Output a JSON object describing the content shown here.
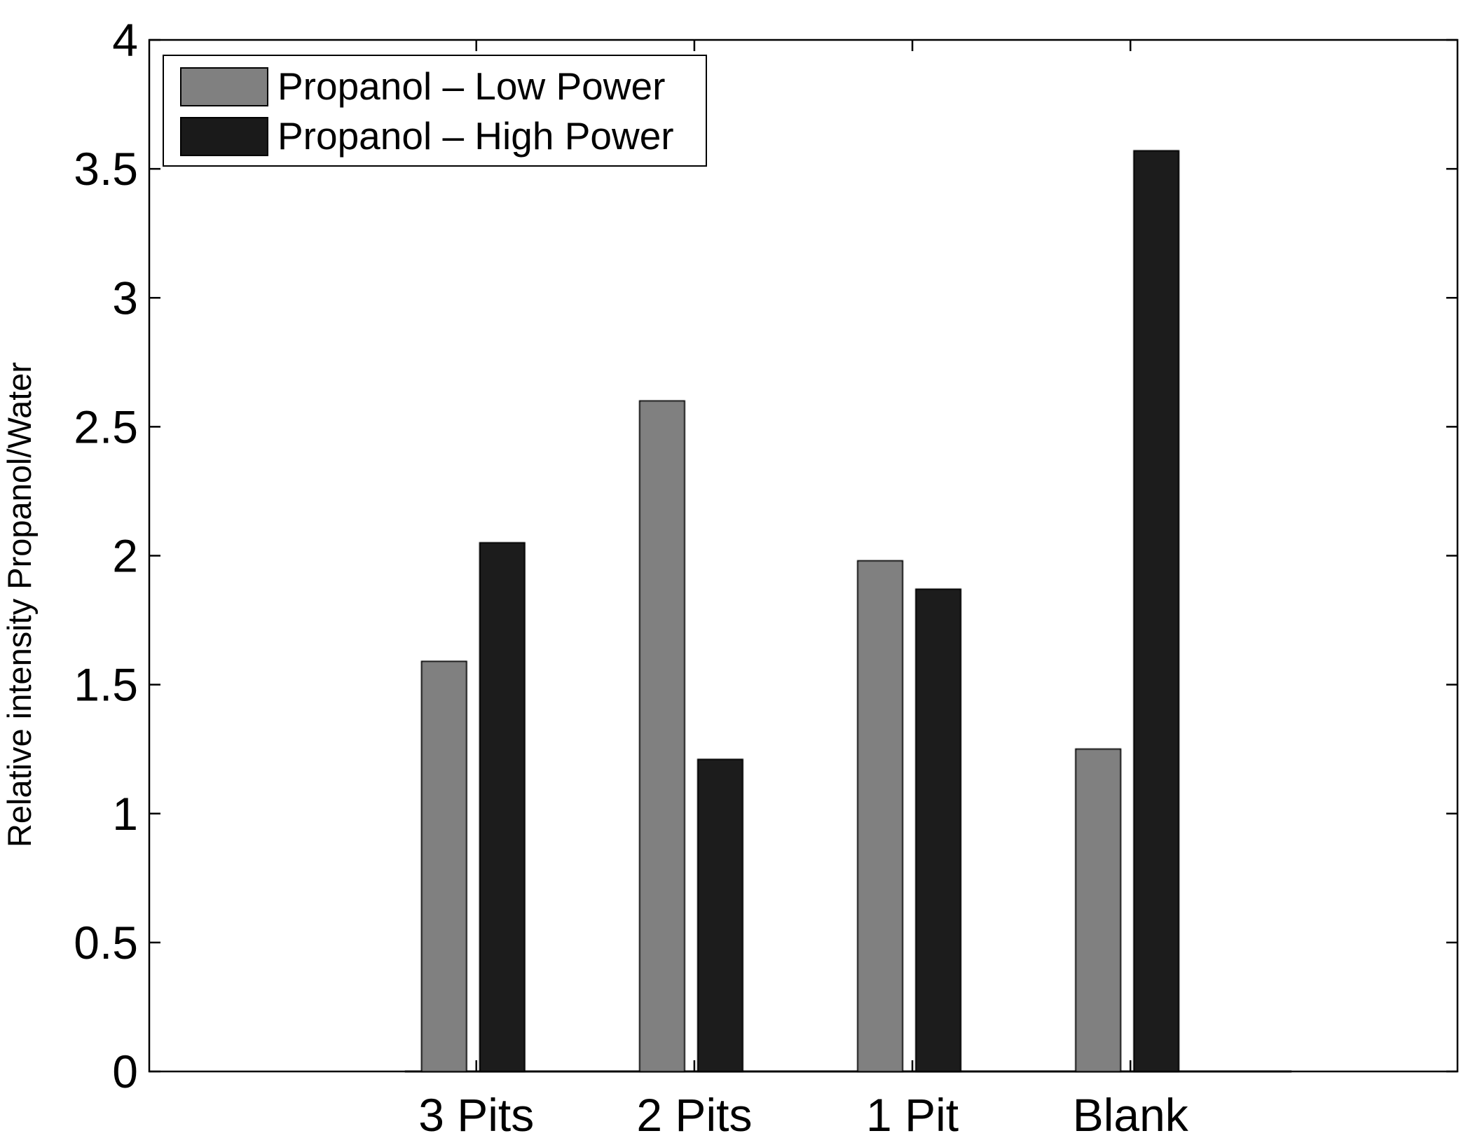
{
  "chart_data": {
    "type": "bar",
    "categories": [
      "3 Pits",
      "2 Pits",
      "1 Pit",
      "Blank"
    ],
    "series": [
      {
        "name": "Propanol – Low Power",
        "color": "#808080",
        "values": [
          1.59,
          2.6,
          1.98,
          1.25
        ]
      },
      {
        "name": "Propanol – High Power",
        "color": "#1a1a1a",
        "values": [
          2.05,
          1.21,
          1.87,
          3.57
        ]
      }
    ],
    "title": "",
    "xlabel": "",
    "ylabel": "Relative intensity Propanol/Water",
    "ylim": [
      0,
      4
    ],
    "yticks": [
      "0",
      "0.5",
      "1",
      "1.5",
      "2",
      "2.5",
      "3",
      "3.5",
      "4"
    ],
    "grid": false,
    "legend_position": "top-left"
  }
}
